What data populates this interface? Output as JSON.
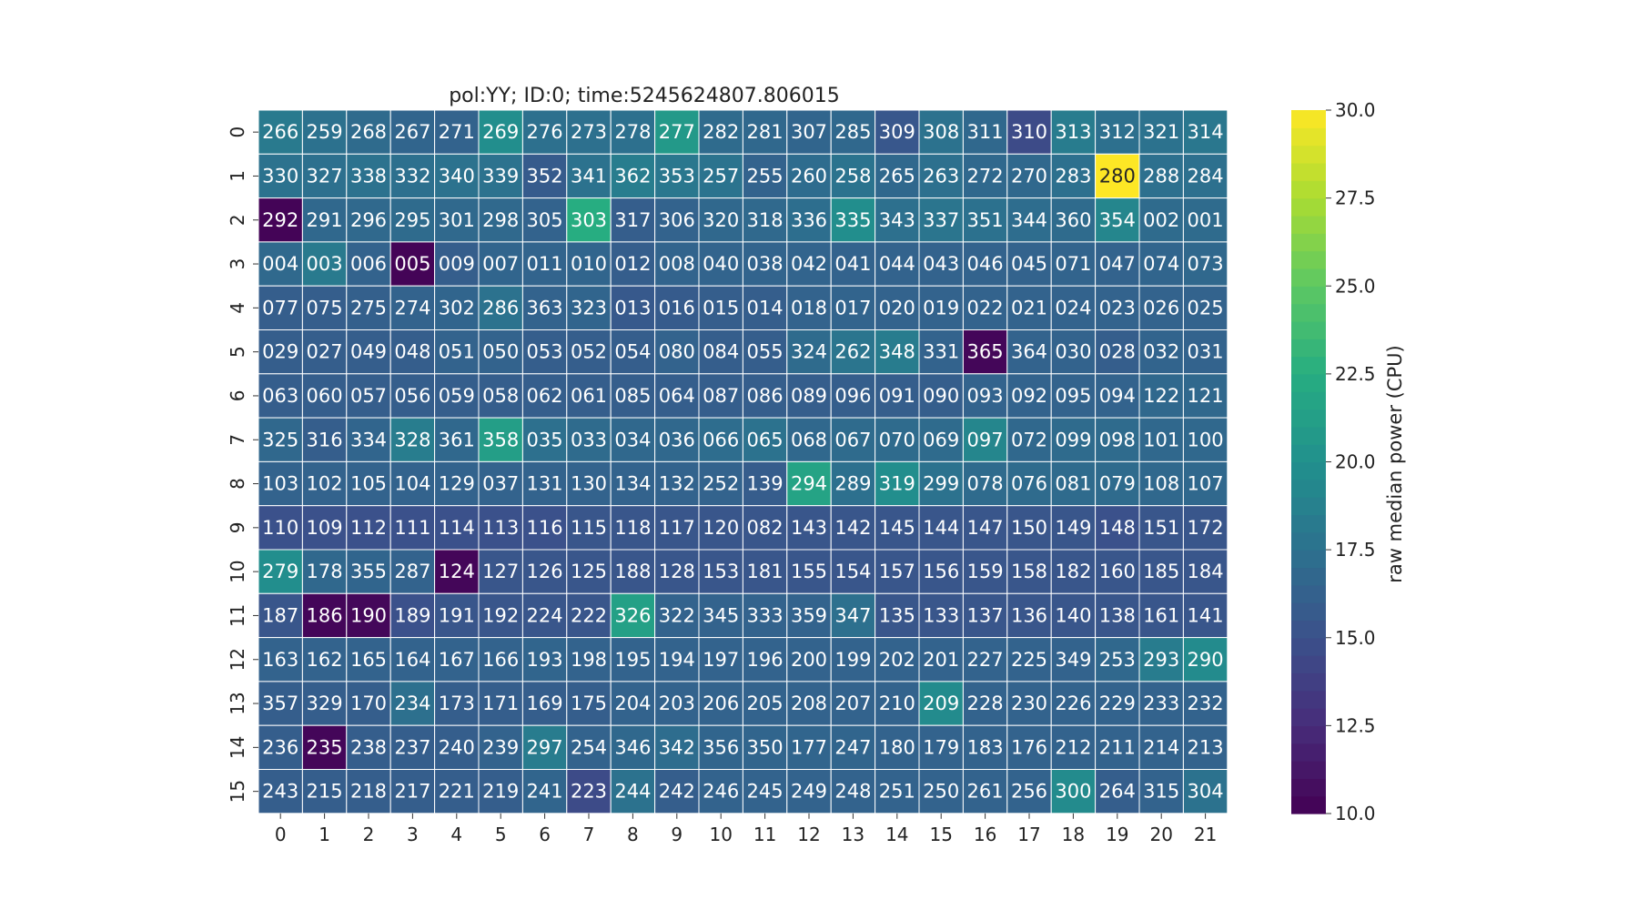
{
  "chart_data": {
    "type": "heatmap",
    "title": "pol:YY; ID:0; time:5245624807.806015",
    "x_ticks": [
      "0",
      "1",
      "2",
      "3",
      "4",
      "5",
      "6",
      "7",
      "8",
      "9",
      "10",
      "11",
      "12",
      "13",
      "14",
      "15",
      "16",
      "17",
      "18",
      "19",
      "20",
      "21"
    ],
    "y_ticks": [
      "0",
      "1",
      "2",
      "3",
      "4",
      "5",
      "6",
      "7",
      "8",
      "9",
      "10",
      "11",
      "12",
      "13",
      "14",
      "15"
    ],
    "annotations": [
      [
        "266",
        "259",
        "268",
        "267",
        "271",
        "269",
        "276",
        "273",
        "278",
        "277",
        "282",
        "281",
        "307",
        "285",
        "309",
        "308",
        "311",
        "310",
        "313",
        "312",
        "321",
        "314"
      ],
      [
        "330",
        "327",
        "338",
        "332",
        "340",
        "339",
        "352",
        "341",
        "362",
        "353",
        "257",
        "255",
        "260",
        "258",
        "265",
        "263",
        "272",
        "270",
        "283",
        "280",
        "288",
        "284"
      ],
      [
        "292",
        "291",
        "296",
        "295",
        "301",
        "298",
        "305",
        "303",
        "317",
        "306",
        "320",
        "318",
        "336",
        "335",
        "343",
        "337",
        "351",
        "344",
        "360",
        "354",
        "002",
        "001"
      ],
      [
        "004",
        "003",
        "006",
        "005",
        "009",
        "007",
        "011",
        "010",
        "012",
        "008",
        "040",
        "038",
        "042",
        "041",
        "044",
        "043",
        "046",
        "045",
        "071",
        "047",
        "074",
        "073"
      ],
      [
        "077",
        "075",
        "275",
        "274",
        "302",
        "286",
        "363",
        "323",
        "013",
        "016",
        "015",
        "014",
        "018",
        "017",
        "020",
        "019",
        "022",
        "021",
        "024",
        "023",
        "026",
        "025"
      ],
      [
        "029",
        "027",
        "049",
        "048",
        "051",
        "050",
        "053",
        "052",
        "054",
        "080",
        "084",
        "055",
        "324",
        "262",
        "348",
        "331",
        "365",
        "364",
        "030",
        "028",
        "032",
        "031"
      ],
      [
        "063",
        "060",
        "057",
        "056",
        "059",
        "058",
        "062",
        "061",
        "085",
        "064",
        "087",
        "086",
        "089",
        "096",
        "091",
        "090",
        "093",
        "092",
        "095",
        "094",
        "122",
        "121"
      ],
      [
        "325",
        "316",
        "334",
        "328",
        "361",
        "358",
        "035",
        "033",
        "034",
        "036",
        "066",
        "065",
        "068",
        "067",
        "070",
        "069",
        "097",
        "072",
        "099",
        "098",
        "101",
        "100"
      ],
      [
        "103",
        "102",
        "105",
        "104",
        "129",
        "037",
        "131",
        "130",
        "134",
        "132",
        "252",
        "139",
        "294",
        "289",
        "319",
        "299",
        "078",
        "076",
        "081",
        "079",
        "108",
        "107"
      ],
      [
        "110",
        "109",
        "112",
        "111",
        "114",
        "113",
        "116",
        "115",
        "118",
        "117",
        "120",
        "082",
        "143",
        "142",
        "145",
        "144",
        "147",
        "150",
        "149",
        "148",
        "151",
        "172"
      ],
      [
        "279",
        "178",
        "355",
        "287",
        "124",
        "127",
        "126",
        "125",
        "188",
        "128",
        "153",
        "181",
        "155",
        "154",
        "157",
        "156",
        "159",
        "158",
        "182",
        "160",
        "185",
        "184"
      ],
      [
        "187",
        "186",
        "190",
        "189",
        "191",
        "192",
        "224",
        "222",
        "326",
        "322",
        "345",
        "333",
        "359",
        "347",
        "135",
        "133",
        "137",
        "136",
        "140",
        "138",
        "161",
        "141"
      ],
      [
        "163",
        "162",
        "165",
        "164",
        "167",
        "166",
        "193",
        "198",
        "195",
        "194",
        "197",
        "196",
        "200",
        "199",
        "202",
        "201",
        "227",
        "225",
        "349",
        "253",
        "293",
        "290"
      ],
      [
        "357",
        "329",
        "170",
        "234",
        "173",
        "171",
        "169",
        "175",
        "204",
        "203",
        "206",
        "205",
        "208",
        "207",
        "210",
        "209",
        "228",
        "230",
        "226",
        "229",
        "233",
        "232"
      ],
      [
        "236",
        "235",
        "238",
        "237",
        "240",
        "239",
        "297",
        "254",
        "346",
        "342",
        "356",
        "350",
        "177",
        "247",
        "180",
        "179",
        "183",
        "176",
        "212",
        "211",
        "214",
        "213"
      ],
      [
        "243",
        "215",
        "218",
        "217",
        "221",
        "219",
        "241",
        "223",
        "244",
        "242",
        "246",
        "245",
        "249",
        "248",
        "251",
        "250",
        "261",
        "256",
        "300",
        "264",
        "315",
        "304"
      ]
    ],
    "values": [
      [
        18.2,
        17.5,
        17.0,
        16.6,
        16.4,
        19.8,
        17.4,
        17.4,
        17.4,
        20.8,
        17.0,
        16.8,
        16.6,
        16.8,
        15.5,
        17.6,
        16.8,
        14.6,
        18.4,
        17.4,
        17.6,
        18.0
      ],
      [
        17.6,
        17.4,
        17.6,
        17.4,
        17.6,
        17.6,
        15.8,
        17.6,
        18.5,
        18.0,
        17.7,
        16.4,
        17.1,
        17.7,
        16.8,
        17.4,
        16.8,
        16.8,
        17.4,
        30.0,
        17.4,
        17.4
      ],
      [
        10.2,
        16.8,
        16.9,
        17.0,
        16.9,
        16.9,
        16.4,
        22.5,
        16.0,
        16.4,
        16.8,
        16.9,
        17.3,
        19.8,
        17.4,
        17.8,
        17.5,
        17.2,
        17.0,
        19.2,
        17.0,
        17.0
      ],
      [
        16.9,
        18.2,
        16.4,
        10.2,
        16.0,
        16.6,
        16.5,
        16.6,
        16.0,
        16.5,
        16.5,
        16.5,
        16.5,
        16.4,
        16.4,
        16.4,
        16.4,
        16.4,
        16.5,
        16.4,
        16.6,
        16.8
      ],
      [
        16.0,
        16.0,
        16.2,
        16.4,
        16.6,
        17.6,
        16.4,
        16.6,
        15.6,
        15.8,
        16.0,
        16.0,
        16.4,
        16.5,
        16.4,
        16.4,
        16.4,
        16.4,
        16.4,
        16.4,
        16.4,
        16.4
      ],
      [
        16.0,
        16.0,
        16.0,
        16.0,
        16.4,
        16.4,
        16.0,
        16.0,
        16.0,
        16.4,
        16.0,
        16.0,
        17.0,
        17.8,
        18.4,
        16.4,
        10.3,
        16.4,
        16.4,
        16.0,
        16.5,
        16.4
      ],
      [
        16.0,
        16.0,
        16.0,
        16.0,
        16.0,
        16.0,
        16.0,
        16.0,
        16.0,
        16.0,
        16.0,
        16.0,
        16.0,
        16.0,
        16.0,
        16.0,
        16.4,
        16.4,
        16.4,
        16.4,
        16.8,
        16.8
      ],
      [
        16.8,
        16.0,
        16.6,
        18.5,
        16.8,
        21.2,
        17.4,
        17.0,
        16.8,
        16.8,
        17.2,
        17.6,
        16.8,
        17.0,
        17.0,
        17.0,
        19.2,
        16.8,
        17.0,
        17.0,
        16.8,
        16.8
      ],
      [
        16.4,
        16.4,
        16.4,
        16.4,
        16.4,
        16.4,
        16.4,
        16.4,
        16.4,
        16.4,
        16.4,
        15.9,
        21.6,
        17.4,
        19.8,
        17.6,
        17.0,
        17.0,
        17.0,
        17.0,
        16.8,
        16.8
      ],
      [
        15.0,
        15.0,
        15.0,
        15.0,
        15.0,
        15.0,
        15.0,
        15.4,
        15.4,
        15.4,
        15.4,
        15.4,
        15.4,
        15.4,
        15.4,
        15.4,
        15.4,
        15.4,
        15.4,
        15.0,
        15.4,
        15.4
      ],
      [
        19.8,
        16.8,
        16.6,
        16.4,
        10.3,
        15.4,
        15.4,
        15.4,
        15.4,
        15.4,
        15.4,
        15.4,
        15.4,
        15.4,
        15.4,
        15.4,
        15.4,
        15.4,
        15.4,
        15.4,
        15.4,
        15.4
      ],
      [
        15.4,
        10.3,
        10.4,
        15.0,
        15.4,
        15.4,
        15.4,
        15.4,
        21.4,
        16.4,
        16.4,
        16.4,
        16.4,
        17.4,
        15.4,
        15.4,
        15.4,
        15.4,
        15.4,
        15.4,
        15.4,
        15.4
      ],
      [
        16.4,
        16.4,
        16.4,
        16.4,
        16.4,
        16.4,
        16.6,
        16.4,
        16.4,
        16.4,
        16.4,
        16.4,
        16.4,
        16.4,
        16.4,
        16.4,
        16.4,
        16.4,
        16.4,
        16.8,
        18.4,
        19.6
      ],
      [
        16.0,
        16.0,
        16.0,
        17.4,
        16.0,
        16.0,
        16.0,
        16.0,
        16.4,
        16.4,
        16.4,
        16.4,
        16.4,
        16.4,
        16.4,
        19.6,
        16.4,
        16.4,
        16.4,
        16.4,
        16.4,
        16.4
      ],
      [
        16.0,
        10.3,
        16.0,
        16.0,
        16.0,
        16.4,
        18.4,
        16.4,
        16.8,
        17.2,
        16.6,
        16.6,
        16.6,
        16.6,
        16.4,
        16.4,
        16.4,
        16.4,
        16.4,
        16.4,
        16.4,
        16.4
      ],
      [
        16.0,
        16.0,
        16.0,
        16.0,
        16.0,
        16.0,
        16.6,
        14.6,
        17.6,
        16.0,
        16.4,
        16.4,
        16.4,
        16.4,
        16.4,
        16.4,
        16.4,
        16.4,
        19.6,
        16.0,
        16.4,
        17.6
      ]
    ],
    "colorbar": {
      "label": "raw median power (CPU)",
      "range": [
        10.0,
        30.0
      ],
      "ticks": [
        "10.0",
        "12.5",
        "15.0",
        "17.5",
        "20.0",
        "22.5",
        "25.0",
        "27.5",
        "30.0"
      ],
      "colormap": "viridis"
    },
    "grid": false,
    "legend": "colorbar-right"
  }
}
